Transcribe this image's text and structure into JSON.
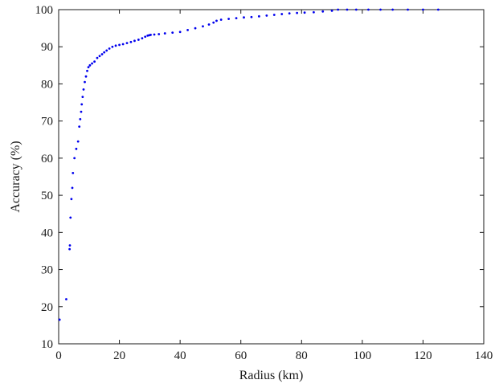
{
  "chart_data": {
    "type": "scatter",
    "title": "",
    "xlabel": "Radius (km)",
    "ylabel": "Accuracy (%)",
    "xlim": [
      0,
      140
    ],
    "ylim": [
      10,
      100
    ],
    "xticks": [
      "0",
      "20",
      "40",
      "60",
      "80",
      "100",
      "120",
      "140"
    ],
    "yticks": [
      "10",
      "20",
      "30",
      "40",
      "50",
      "60",
      "70",
      "80",
      "90",
      "100"
    ],
    "grid": false,
    "legend": "none",
    "marker_color": "#0000ee",
    "series": [
      {
        "x": [
          0.3,
          2.5,
          3.6,
          3.7,
          3.9,
          4.2,
          4.5,
          4.7,
          5.2,
          5.8,
          6.4,
          6.8,
          7.1,
          7.4,
          7.6,
          7.9,
          8.2,
          8.6,
          9.0,
          9.4,
          9.8,
          10.3,
          11.0,
          11.8,
          12.7,
          13.5,
          14.3,
          15.0,
          15.8,
          16.7,
          17.7,
          18.8,
          20.0,
          21.2,
          22.5,
          23.8,
          25.0,
          26.3,
          27.5,
          28.5,
          29.3,
          29.8,
          30.3,
          31.5,
          33.0,
          35.0,
          37.5,
          40.0,
          42.5,
          45.0,
          47.5,
          49.5,
          51.0,
          52.0,
          53.5,
          56.0,
          58.5,
          61.0,
          63.5,
          66.0,
          68.5,
          71.0,
          73.5,
          76.0,
          78.5,
          81.0,
          84.0,
          87.0,
          90.0,
          92.0,
          95.0,
          98.0,
          102.0,
          106.0,
          110.0,
          115.0,
          120.0,
          125.0
        ],
        "y": [
          16.5,
          22.0,
          35.5,
          36.5,
          44.0,
          49.0,
          52.0,
          56.0,
          60.0,
          62.5,
          64.5,
          68.5,
          70.5,
          72.5,
          74.5,
          76.5,
          78.5,
          80.5,
          82.0,
          83.5,
          84.5,
          85.0,
          85.5,
          86.0,
          87.0,
          87.5,
          88.0,
          88.5,
          89.0,
          89.5,
          90.0,
          90.3,
          90.5,
          90.7,
          91.0,
          91.3,
          91.6,
          91.9,
          92.3,
          92.7,
          93.0,
          93.1,
          93.2,
          93.3,
          93.4,
          93.6,
          93.8,
          94.0,
          94.5,
          95.0,
          95.5,
          96.0,
          96.5,
          97.0,
          97.3,
          97.5,
          97.7,
          97.9,
          98.0,
          98.2,
          98.4,
          98.6,
          98.8,
          99.0,
          99.1,
          99.2,
          99.3,
          99.5,
          99.7,
          100.0,
          100.0,
          100.0,
          100.0,
          100.0,
          100.0,
          100.0,
          100.0,
          100.0
        ]
      }
    ]
  }
}
